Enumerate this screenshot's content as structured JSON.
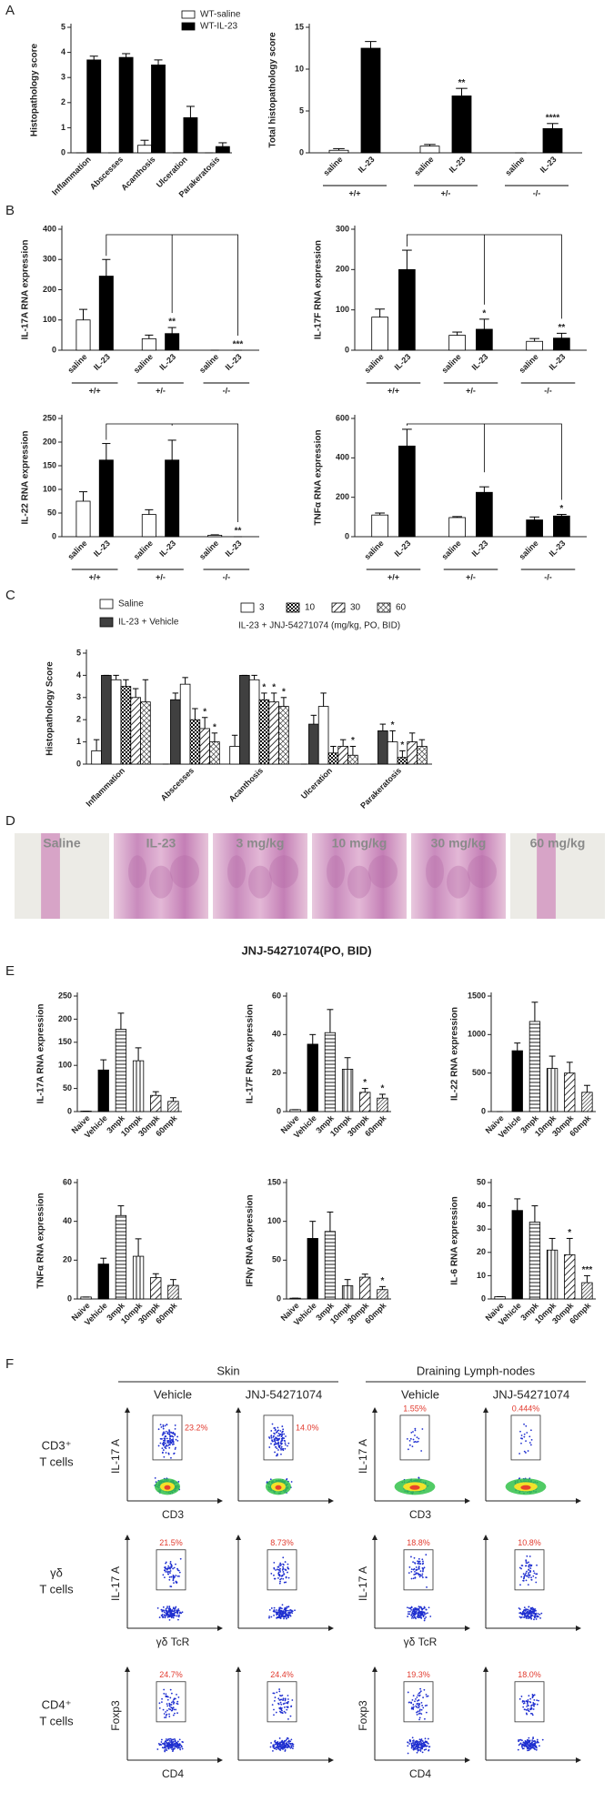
{
  "panel_labels": [
    "A",
    "B",
    "C",
    "D",
    "E",
    "F"
  ],
  "chart_data": [
    {
      "type": "bar",
      "ylabel": "Histopathology score",
      "categories": [
        "Inflammation",
        "Abscesses",
        "Acanthosis",
        "Ulceration",
        "Parakeratosis"
      ],
      "series": [
        {
          "name": "WT-saline",
          "fill": "#ffffff",
          "values": [
            0,
            0,
            0.3,
            0,
            0
          ],
          "errors": [
            0,
            0,
            0.2,
            0,
            0
          ]
        },
        {
          "name": "WT-IL-23",
          "fill": "#000000",
          "values": [
            3.7,
            3.8,
            3.5,
            1.4,
            0.25
          ],
          "errors": [
            0.15,
            0.15,
            0.2,
            0.45,
            0.15
          ]
        }
      ],
      "ylim": [
        0,
        5
      ],
      "yticks": [
        0,
        1,
        2,
        3,
        4,
        5
      ],
      "legend": "top-right"
    },
    {
      "type": "bar",
      "ylabel": "Total histopathology score",
      "categories": [
        "saline",
        "IL-23",
        "saline",
        "IL-23",
        "saline",
        "IL-23"
      ],
      "values": [
        0.3,
        12.5,
        0.8,
        6.8,
        0,
        2.9
      ],
      "errors": [
        0.2,
        0.8,
        0.2,
        0.9,
        0,
        0.6
      ],
      "fills": [
        "#ffffff",
        "#000000",
        "#ffffff",
        "#000000",
        "#ffffff",
        "#000000"
      ],
      "significance": [
        null,
        null,
        null,
        "**",
        null,
        "****"
      ],
      "groups": [
        "+/+",
        "+/-",
        "-/-"
      ],
      "ylim": [
        0,
        15
      ],
      "yticks": [
        0,
        5,
        10,
        15
      ]
    },
    {
      "type": "bar",
      "ylabel": "IL-17A RNA expression",
      "categories": [
        "saline",
        "IL-23",
        "saline",
        "IL-23",
        "saline",
        "IL-23"
      ],
      "values": [
        100,
        245,
        38,
        55,
        0,
        0
      ],
      "errors": [
        35,
        55,
        12,
        20,
        0,
        0
      ],
      "fills": [
        "#ffffff",
        "#000000",
        "#ffffff",
        "#000000",
        "#ffffff",
        "#000000"
      ],
      "significance": [
        null,
        null,
        null,
        "**",
        null,
        "***"
      ],
      "groups": [
        "+/+",
        "+/-",
        "-/-"
      ],
      "ylim": [
        0,
        400
      ],
      "yticks": [
        0,
        100,
        200,
        300,
        400
      ],
      "comparison_bracket": true
    },
    {
      "type": "bar",
      "ylabel": "IL-17F RNA expression",
      "categories": [
        "saline",
        "IL-23",
        "saline",
        "IL-23",
        "saline",
        "IL-23"
      ],
      "values": [
        82,
        200,
        37,
        52,
        22,
        30
      ],
      "errors": [
        20,
        48,
        8,
        25,
        7,
        12
      ],
      "fills": [
        "#ffffff",
        "#000000",
        "#ffffff",
        "#000000",
        "#ffffff",
        "#000000"
      ],
      "significance": [
        null,
        null,
        null,
        "*",
        null,
        "**"
      ],
      "groups": [
        "+/+",
        "+/-",
        "-/-"
      ],
      "ylim": [
        0,
        300
      ],
      "yticks": [
        0,
        100,
        200,
        300
      ],
      "comparison_bracket": true
    },
    {
      "type": "bar",
      "ylabel": "IL-22 RNA expression",
      "categories": [
        "saline",
        "IL-23",
        "saline",
        "IL-23",
        "saline",
        "IL-23"
      ],
      "values": [
        75,
        162,
        47,
        162,
        3,
        0
      ],
      "errors": [
        20,
        35,
        10,
        42,
        1,
        0
      ],
      "fills": [
        "#ffffff",
        "#000000",
        "#ffffff",
        "#000000",
        "#ffffff",
        "#000000"
      ],
      "significance": [
        null,
        null,
        null,
        null,
        null,
        "**"
      ],
      "groups": [
        "+/+",
        "+/-",
        "-/-"
      ],
      "ylim": [
        0,
        250
      ],
      "yticks": [
        0,
        50,
        100,
        150,
        200,
        250
      ],
      "comparison_bracket": true
    },
    {
      "type": "bar",
      "ylabel": "TNFα RNA expression",
      "categories": [
        "saline",
        "IL-23",
        "saline",
        "IL-23",
        "saline",
        "IL-23"
      ],
      "values": [
        110,
        460,
        97,
        225,
        85,
        105
      ],
      "errors": [
        10,
        85,
        5,
        28,
        15,
        8
      ],
      "fills": [
        "#ffffff",
        "#000000",
        "#ffffff",
        "#000000",
        "#000000",
        "#000000"
      ],
      "significance": [
        null,
        null,
        null,
        null,
        null,
        "*"
      ],
      "groups": [
        "+/+",
        "+/-",
        "-/-"
      ],
      "ylim": [
        0,
        600
      ],
      "yticks": [
        0,
        200,
        400,
        600
      ],
      "comparison_bracket": true
    },
    {
      "type": "bar",
      "ylabel": "Histopathology Score",
      "categories": [
        "Inflammation",
        "Abscesses",
        "Acanthosis",
        "Ulceration",
        "Parakeratosis"
      ],
      "series": [
        {
          "name": "Saline",
          "fill": "#ffffff",
          "values": [
            0.6,
            0,
            0.8,
            0,
            0
          ],
          "errors": [
            0.5,
            0,
            0.5,
            0,
            0
          ],
          "significance": [
            null,
            null,
            null,
            null,
            null
          ]
        },
        {
          "name": "IL-23 + Vehicle",
          "fill": "#404040",
          "values": [
            4.0,
            2.9,
            4.0,
            1.8,
            1.5
          ],
          "errors": [
            0,
            0.3,
            0,
            0.4,
            0.3
          ],
          "significance": [
            null,
            null,
            null,
            null,
            null
          ]
        },
        {
          "name": "3",
          "fill": "#ffffff",
          "values": [
            3.8,
            3.6,
            3.8,
            2.6,
            1.0
          ],
          "errors": [
            0.2,
            0.3,
            0.2,
            0.6,
            0.5
          ],
          "significance": [
            null,
            null,
            null,
            null,
            "*"
          ]
        },
        {
          "name": "10",
          "fill": "checker",
          "values": [
            3.5,
            2.0,
            2.9,
            0.5,
            0.3
          ],
          "errors": [
            0.3,
            0.5,
            0.3,
            0.3,
            0.3
          ],
          "significance": [
            null,
            null,
            "*",
            null,
            "*"
          ]
        },
        {
          "name": "30",
          "fill": "diagonal",
          "values": [
            3.0,
            1.6,
            2.8,
            0.8,
            1.0
          ],
          "errors": [
            0.4,
            0.5,
            0.4,
            0.3,
            0.4
          ],
          "significance": [
            null,
            "*",
            "*",
            null,
            null
          ]
        },
        {
          "name": "60",
          "fill": "cross",
          "values": [
            2.8,
            1.0,
            2.6,
            0.4,
            0.8
          ],
          "errors": [
            1.0,
            0.4,
            0.4,
            0.4,
            0.3
          ],
          "significance": [
            null,
            "*",
            "*",
            "*",
            null
          ]
        }
      ],
      "legend_note": "IL-23 + JNJ-54271074 (mg/kg, PO, BID)",
      "ylim": [
        0,
        5
      ],
      "yticks": [
        0,
        1,
        2,
        3,
        4,
        5
      ]
    },
    {
      "type": "bar",
      "ylabel": "IL-17A RNA expression",
      "categories": [
        "Naive",
        "Vehicle",
        "3mpk",
        "10mpk",
        "30mpk",
        "60mpk"
      ],
      "values": [
        1,
        90,
        178,
        110,
        35,
        22
      ],
      "errors": [
        0,
        22,
        35,
        28,
        8,
        8
      ],
      "fills": [
        "#ffffff",
        "#000000",
        "horizontal",
        "vertical",
        "diagonal",
        "diagonal-dense"
      ],
      "significance": [
        null,
        null,
        null,
        null,
        null,
        null
      ],
      "ylim": [
        0,
        250
      ],
      "yticks": [
        0,
        50,
        100,
        150,
        200,
        250
      ]
    },
    {
      "type": "bar",
      "ylabel": "IL-17F RNA expression",
      "categories": [
        "Naive",
        "Vehicle",
        "3mpk",
        "10mpk",
        "30mpk",
        "60mpk"
      ],
      "values": [
        1,
        35,
        41,
        22,
        10,
        7
      ],
      "errors": [
        0,
        5,
        12,
        6,
        2,
        2
      ],
      "fills": [
        "#ffffff",
        "#000000",
        "horizontal",
        "vertical",
        "diagonal",
        "diagonal-dense"
      ],
      "significance": [
        null,
        null,
        null,
        null,
        "*",
        "*"
      ],
      "ylim": [
        0,
        60
      ],
      "yticks": [
        0,
        20,
        40,
        60
      ]
    },
    {
      "type": "bar",
      "ylabel": "IL-22 RNA expression",
      "categories": [
        "Naive",
        "Vehicle",
        "3mpk",
        "10mpk",
        "30mpk",
        "60mpk"
      ],
      "values": [
        0,
        790,
        1170,
        560,
        500,
        250
      ],
      "errors": [
        0,
        100,
        250,
        160,
        140,
        90
      ],
      "fills": [
        "#ffffff",
        "#000000",
        "horizontal",
        "vertical",
        "diagonal",
        "diagonal-dense"
      ],
      "significance": [
        null,
        null,
        null,
        null,
        null,
        null
      ],
      "ylim": [
        0,
        1500
      ],
      "yticks": [
        0,
        500,
        1000,
        1500
      ]
    },
    {
      "type": "bar",
      "ylabel": "TNFα RNA expression",
      "categories": [
        "Naive",
        "Vehicle",
        "3mpk",
        "10mpk",
        "30mpk",
        "60mpk"
      ],
      "values": [
        1,
        18,
        43,
        22,
        11,
        7
      ],
      "errors": [
        0,
        3,
        5,
        9,
        2,
        3
      ],
      "fills": [
        "#ffffff",
        "#000000",
        "horizontal",
        "vertical",
        "diagonal",
        "diagonal-dense"
      ],
      "significance": [
        null,
        null,
        null,
        null,
        null,
        null
      ],
      "ylim": [
        0,
        60
      ],
      "yticks": [
        0,
        20,
        40,
        60
      ]
    },
    {
      "type": "bar",
      "ylabel": "IFNγ RNA expression",
      "categories": [
        "Naive",
        "Vehicle",
        "3mpk",
        "10mpk",
        "30mpk",
        "60mpk"
      ],
      "values": [
        1,
        78,
        87,
        17,
        28,
        12
      ],
      "errors": [
        0,
        22,
        25,
        8,
        4,
        4
      ],
      "fills": [
        "#ffffff",
        "#000000",
        "horizontal",
        "vertical",
        "diagonal",
        "diagonal-dense"
      ],
      "significance": [
        null,
        null,
        null,
        null,
        null,
        "*"
      ],
      "ylim": [
        0,
        150
      ],
      "yticks": [
        0,
        50,
        100,
        150
      ]
    },
    {
      "type": "bar",
      "ylabel": "IL-6 RNA expression",
      "categories": [
        "Naive",
        "Vehicle",
        "3mpk",
        "10mpk",
        "30mpk",
        "60mpk"
      ],
      "values": [
        1,
        38,
        33,
        21,
        19,
        7
      ],
      "errors": [
        0,
        5,
        7,
        5,
        7,
        3
      ],
      "fills": [
        "#ffffff",
        "#000000",
        "horizontal",
        "vertical",
        "diagonal",
        "diagonal-dense"
      ],
      "significance": [
        null,
        null,
        null,
        null,
        "*",
        "***"
      ],
      "ylim": [
        0,
        50
      ],
      "yticks": [
        0,
        10,
        20,
        30,
        40,
        50
      ]
    }
  ],
  "histology": {
    "labels": [
      "Saline",
      "IL-23",
      "3 mg/kg",
      "10 mg/kg",
      "30 mg/kg",
      "60 mg/kg"
    ],
    "caption": "JNJ-54271074(PO, BID)"
  },
  "flow": {
    "tissues": [
      "Skin",
      "Draining Lymph-nodes"
    ],
    "treatments": [
      "Vehicle",
      "JNJ-54271074",
      "Vehicle",
      "JNJ-54271074"
    ],
    "rows": [
      {
        "label": [
          "CD3⁺",
          "T cells"
        ],
        "y_axis": "IL-17 A",
        "x_axis": "CD3",
        "gates": [
          "23.2%",
          "14.0%",
          "1.55%",
          "0.444%"
        ]
      },
      {
        "label": [
          "γδ",
          "T cells"
        ],
        "y_axis": "IL-17 A",
        "x_axis": "γδ TcR",
        "gates": [
          "21.5%",
          "8.73%",
          "18.8%",
          "10.8%"
        ]
      },
      {
        "label": [
          "CD4⁺",
          "T cells"
        ],
        "y_axis": "Foxp3",
        "x_axis": "CD4",
        "gates": [
          "24.7%",
          "24.4%",
          "19.3%",
          "18.0%"
        ]
      }
    ]
  }
}
